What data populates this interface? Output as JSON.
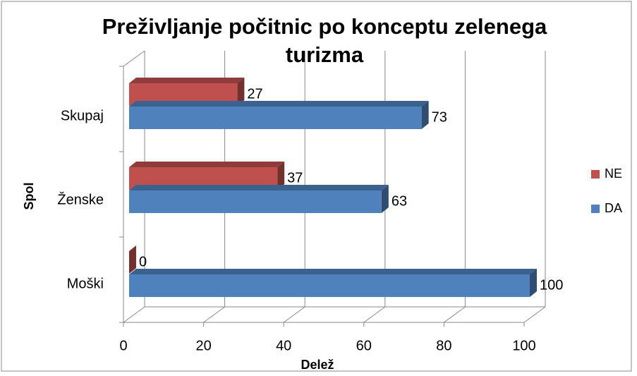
{
  "chart_data": {
    "type": "bar3d_horizontal",
    "title": "Preživljanje počitnic po konceptu zelenega turizma",
    "x_label": "Delež",
    "y_label": "Spol",
    "categories": [
      "Skupaj",
      "Ženske",
      "Moški"
    ],
    "series": [
      {
        "name": "NE",
        "color": "#c0504d",
        "values": [
          27,
          37,
          0
        ]
      },
      {
        "name": "DA",
        "color": "#4f81bd",
        "values": [
          73,
          63,
          100
        ]
      }
    ],
    "xlim": [
      0,
      100
    ],
    "xticks": [
      0,
      20,
      40,
      60,
      80,
      100
    ],
    "grid": true,
    "legend": "right"
  }
}
